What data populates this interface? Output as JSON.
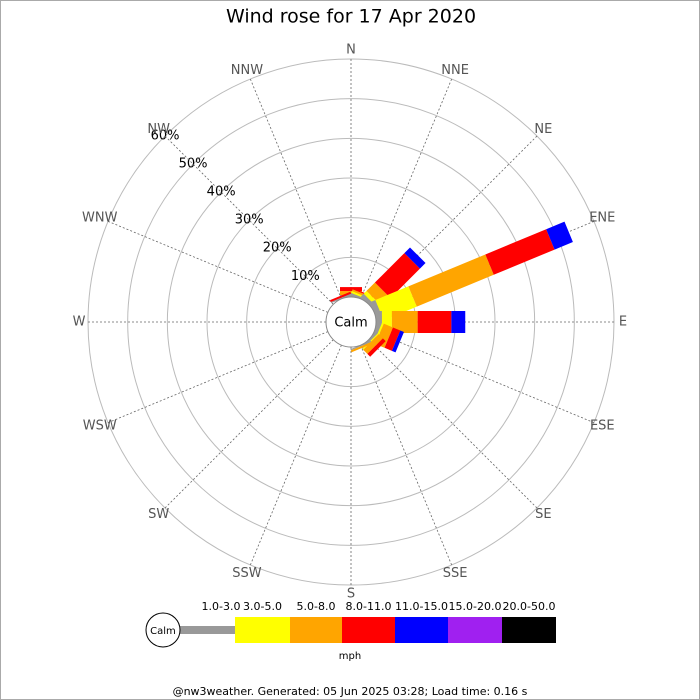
{
  "chart_data": {
    "type": "windrose",
    "title": "Wind rose for 17 Apr 2020",
    "categories": [
      "N",
      "NNE",
      "NE",
      "ENE",
      "E",
      "ESE",
      "SE",
      "SSE",
      "S",
      "SSW",
      "SW",
      "WSW",
      "W",
      "WNW",
      "NW",
      "NNW"
    ],
    "series": [
      {
        "name": "1.0-3.0",
        "color": "#999999",
        "values": [
          0.5,
          0.5,
          1,
          1.5,
          1.5,
          1,
          0.5,
          0.3,
          0,
          0,
          0,
          0,
          0,
          0,
          0,
          0.3
        ]
      },
      {
        "name": "3.0-5.0",
        "color": "#ffff00",
        "values": [
          0,
          0.5,
          1,
          9,
          2.5,
          0.5,
          0.3,
          0,
          0,
          0,
          0,
          0,
          0,
          0,
          0,
          0
        ]
      },
      {
        "name": "5.0-8.0",
        "color": "#ffa500",
        "values": [
          1,
          0.5,
          3,
          21,
          6.5,
          2.5,
          1.5,
          0.5,
          0,
          0,
          0,
          0,
          0,
          0,
          0,
          0
        ]
      },
      {
        "name": "8.0-11.0",
        "color": "#ff0000",
        "values": [
          1,
          0.3,
          10.5,
          16.6,
          8.5,
          2,
          1,
          0,
          0,
          0,
          0,
          0,
          0,
          0,
          0,
          0.5
        ]
      },
      {
        "name": "11.0-15.0",
        "color": "#0000ff",
        "values": [
          0,
          0,
          2,
          5,
          3.5,
          1,
          0,
          0,
          0,
          0,
          0,
          0,
          0,
          0,
          0,
          0
        ]
      },
      {
        "name": "15.0-20.0",
        "color": "#a020f0",
        "values": [
          0,
          0,
          0,
          0,
          0,
          0,
          0,
          0,
          0,
          0,
          0,
          0,
          0,
          0,
          0,
          0
        ]
      },
      {
        "name": "20.0-50.0",
        "color": "#000000",
        "values": [
          0,
          0,
          0,
          0,
          0,
          0,
          0,
          0,
          0,
          0,
          0,
          0,
          0,
          0,
          0,
          0
        ]
      }
    ],
    "rlim": [
      0,
      60
    ],
    "rticks": [
      {
        "value": 10,
        "label": "10%"
      },
      {
        "value": 20,
        "label": "20%"
      },
      {
        "value": 30,
        "label": "30%"
      },
      {
        "value": 40,
        "label": "40%"
      },
      {
        "value": 50,
        "label": "50%"
      },
      {
        "value": 60,
        "label": "60%"
      }
    ],
    "calm_label": "Calm",
    "unit_label": "mph",
    "footer": "@nw3weather. Generated: 05 Jun 2025 03:28; Load time: 0.16 s"
  }
}
